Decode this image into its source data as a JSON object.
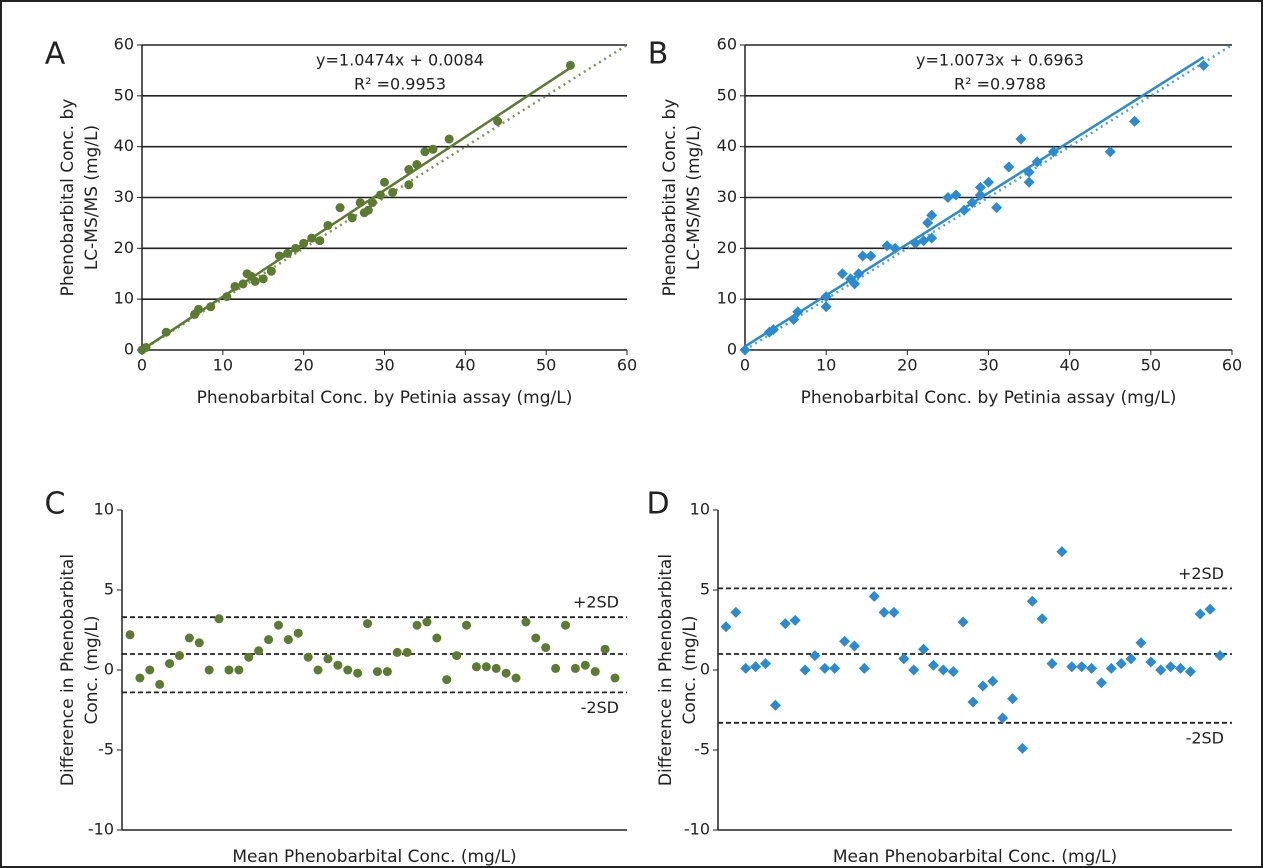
{
  "chart_data": [
    {
      "type": "scatter",
      "panel": "A",
      "color": "#5b7b30",
      "marker": "circle",
      "equation": "y=1.0474x + 0.0084",
      "r_squared": "R² =0.9953",
      "trendline": {
        "slope": 1.0474,
        "intercept": 0.0084
      },
      "identity_line": true,
      "x_label": "Phenobarbital Conc. by Petinia assay (mg/L)",
      "y_label": [
        "Phenobarbital Conc. by",
        "LC-MS/MS (mg/L)"
      ],
      "x": [
        0,
        0.5,
        3,
        6.5,
        7,
        8.5,
        10.5,
        11.5,
        12.5,
        13,
        13.5,
        14,
        15,
        16,
        17,
        18,
        19,
        20,
        21,
        22,
        23,
        24.5,
        26,
        27,
        27.5,
        28,
        28.5,
        29.5,
        30,
        31,
        33,
        33,
        34,
        35,
        36,
        38,
        44,
        53
      ],
      "values": [
        0,
        0.5,
        3.5,
        7,
        8,
        8.5,
        10.5,
        12.5,
        13,
        15,
        14.5,
        13.5,
        14,
        15.5,
        18.5,
        19,
        20,
        21,
        22,
        21.5,
        24.5,
        28,
        26,
        29,
        27,
        27.5,
        29,
        30.5,
        33,
        31,
        32.5,
        35.5,
        36.5,
        39,
        39.5,
        41.5,
        45,
        56
      ],
      "xlim": [
        0,
        60
      ],
      "xticks": [
        0,
        10,
        20,
        30,
        40,
        50,
        60
      ],
      "ylim": [
        0,
        60
      ],
      "yticks": [
        0,
        10,
        20,
        30,
        40,
        50,
        60
      ],
      "grid": true
    },
    {
      "type": "scatter",
      "panel": "B",
      "color": "#2a8bd2",
      "marker": "diamond",
      "equation": "y=1.0073x + 0.6963",
      "r_squared": "R² =0.9788",
      "trendline": {
        "slope": 1.0073,
        "intercept": 0.6963
      },
      "identity_line": true,
      "x_label": "Phenobarbital Conc. by Petinia assay (mg/L)",
      "y_label": [
        "Phenobarbital Conc. by",
        "LC-MS/MS (mg/L)"
      ],
      "x": [
        0,
        3,
        3.5,
        6,
        6.5,
        10,
        10,
        12,
        13,
        13.5,
        14,
        14.5,
        15.5,
        17.5,
        18.5,
        21,
        22,
        22.5,
        23,
        23,
        25,
        26,
        27,
        28,
        29,
        29,
        30,
        31,
        32.5,
        34,
        35,
        35,
        36,
        38,
        45,
        48,
        56.5
      ],
      "values": [
        0,
        3.5,
        4,
        6,
        7.5,
        8.5,
        10.5,
        15,
        14,
        13,
        15,
        18.5,
        18.5,
        20.5,
        20,
        21,
        21.5,
        25,
        22,
        26.5,
        30,
        30.5,
        27.5,
        29,
        30.5,
        32,
        33,
        28,
        36,
        41.5,
        33,
        35,
        37,
        39,
        39,
        45,
        56
      ],
      "xlim": [
        0,
        60
      ],
      "xticks": [
        0,
        10,
        20,
        30,
        40,
        50,
        60
      ],
      "ylim": [
        0,
        60
      ],
      "yticks": [
        0,
        10,
        20,
        30,
        40,
        50,
        60
      ],
      "grid": true
    },
    {
      "type": "scatter",
      "panel": "C",
      "color": "#5b7b30",
      "marker": "circle",
      "x_label": "Mean Phenobarbital Conc. (mg/L)",
      "y_label": [
        "Difference in Phenobarbital",
        "Conc. (mg/L)"
      ],
      "values": [
        2.2,
        -0.5,
        0,
        -0.9,
        0.4,
        0.9,
        2.0,
        1.7,
        0,
        3.2,
        0,
        0,
        0.8,
        1.2,
        1.9,
        2.8,
        1.9,
        2.3,
        0.8,
        0,
        0.7,
        0.3,
        0,
        -0.2,
        2.9,
        -0.1,
        -0.1,
        1.1,
        1.1,
        2.8,
        3.0,
        2.0,
        -0.6,
        0.9,
        2.8,
        0.2,
        0.2,
        0.1,
        -0.2,
        -0.5,
        3.0,
        2.0,
        1.4,
        0.1,
        2.8,
        0.1,
        0.3,
        -0.1,
        1.3,
        -0.5
      ],
      "hlines": [
        {
          "value": 3.3,
          "label": "+2SD"
        },
        {
          "value": 1.0
        },
        {
          "value": -1.4,
          "label": "-2SD"
        }
      ],
      "ylim": [
        -10,
        10
      ],
      "yticks": [
        -10,
        -5,
        0,
        5,
        10
      ],
      "grid": false
    },
    {
      "type": "scatter",
      "panel": "D",
      "color": "#2a8bd2",
      "marker": "diamond",
      "x_label": "Mean Phenobarbital Conc. (mg/L)",
      "y_label": [
        "Difference in Phenobarbital",
        "Conc. (mg/L)"
      ],
      "values": [
        2.7,
        3.6,
        0.1,
        0.2,
        0.4,
        -2.2,
        2.9,
        3.1,
        0,
        0.9,
        0.1,
        0.1,
        1.8,
        1.5,
        0.1,
        4.6,
        3.6,
        3.6,
        0.7,
        0,
        1.3,
        0.3,
        0,
        -0.1,
        3.0,
        -2.0,
        -1.0,
        -0.7,
        -3.0,
        -1.8,
        -4.9,
        4.3,
        3.2,
        0.4,
        7.4,
        0.2,
        0.2,
        0.1,
        -0.8,
        0.1,
        0.4,
        0.7,
        1.7,
        0.5,
        0,
        0.2,
        0.1,
        -0.1,
        3.5,
        3.8,
        0.9
      ],
      "hlines": [
        {
          "value": 5.1,
          "label": "+2SD"
        },
        {
          "value": 1.0
        },
        {
          "value": -3.3,
          "label": "-2SD"
        }
      ],
      "ylim": [
        -10,
        10
      ],
      "yticks": [
        -10,
        -5,
        0,
        5,
        10
      ],
      "grid": false
    }
  ]
}
